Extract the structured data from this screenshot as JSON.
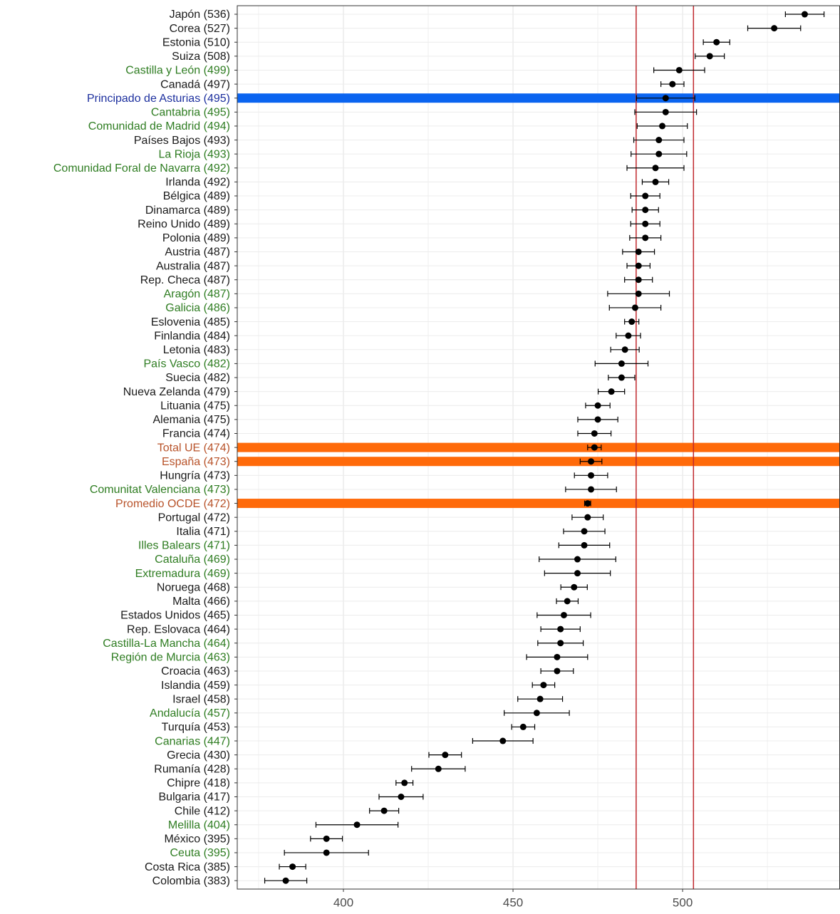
{
  "chart_data": {
    "type": "dotplot",
    "categories": [
      "Japón (536)",
      "Corea (527)",
      "Estonia (510)",
      "Suiza (508)",
      "Castilla y León (499)",
      "Canadá (497)",
      "Principado de Asturias (495)",
      "Cantabria (495)",
      "Comunidad de Madrid (494)",
      "Países Bajos (493)",
      "La Rioja (493)",
      "Comunidad Foral de Navarra (492)",
      "Irlanda (492)",
      "Bélgica (489)",
      "Dinamarca (489)",
      "Reino Unido (489)",
      "Polonia (489)",
      "Austria (487)",
      "Australia (487)",
      "Rep. Checa (487)",
      "Aragón (487)",
      "Galicia (486)",
      "Eslovenia (485)",
      "Finlandia (484)",
      "Letonia (483)",
      "País Vasco (482)",
      "Suecia (482)",
      "Nueva Zelanda (479)",
      "Lituania (475)",
      "Alemania (475)",
      "Francia (474)",
      "Total UE (474)",
      "España (473)",
      "Hungría (473)",
      "Comunitat Valenciana (473)",
      "Promedio OCDE (472)",
      "Portugal (472)",
      "Italia (471)",
      "Illes Balears (471)",
      "Cataluña (469)",
      "Extremadura (469)",
      "Noruega (468)",
      "Malta (466)",
      "Estados Unidos (465)",
      "Rep. Eslovaca (464)",
      "Castilla-La Mancha (464)",
      "Región de Murcia (463)",
      "Croacia (463)",
      "Islandia (459)",
      "Israel (458)",
      "Andalucía (457)",
      "Turquía (453)",
      "Canarias (447)",
      "Grecia (430)",
      "Rumanía (428)",
      "Chipre (418)",
      "Bulgaria (417)",
      "Chile (412)",
      "Melilla (404)",
      "México (395)",
      "Ceuta (395)",
      "Costa Rica (385)",
      "Colombia (383)"
    ],
    "values": [
      536,
      527,
      510,
      508,
      499,
      497,
      495,
      495,
      494,
      493,
      493,
      492,
      492,
      489,
      489,
      489,
      489,
      487,
      487,
      487,
      487,
      486,
      485,
      484,
      483,
      482,
      482,
      479,
      475,
      475,
      474,
      474,
      473,
      473,
      473,
      472,
      472,
      471,
      471,
      469,
      469,
      468,
      466,
      465,
      464,
      464,
      463,
      463,
      459,
      458,
      457,
      453,
      447,
      430,
      428,
      418,
      417,
      412,
      404,
      395,
      395,
      385,
      383
    ],
    "errors": [
      5.7,
      7.8,
      3.9,
      4.3,
      7.5,
      3.4,
      8.6,
      9.1,
      7.4,
      7.4,
      8.2,
      8.4,
      3.9,
      4.3,
      3.9,
      4.3,
      4.6,
      4.7,
      3.4,
      4.1,
      9.1,
      7.6,
      2.1,
      3.6,
      4.2,
      7.8,
      3.9,
      3.9,
      3.6,
      5.9,
      4.9,
      2.0,
      3.2,
      4.9,
      7.5,
      0.9,
      4.6,
      6.1,
      7.5,
      11.3,
      9.7,
      3.9,
      3.2,
      7.9,
      5.8,
      6.7,
      9.0,
      4.8,
      3.3,
      6.6,
      9.6,
      3.4,
      8.9,
      4.8,
      7.9,
      2.5,
      6.5,
      4.3,
      12.1,
      4.7,
      12.4,
      3.9,
      6.2
    ],
    "label_colors": [
      "#1a1a1a",
      "#1a1a1a",
      "#1a1a1a",
      "#1a1a1a",
      "#2f7d22",
      "#1a1a1a",
      "#1c2f9e",
      "#2f7d22",
      "#2f7d22",
      "#1a1a1a",
      "#2f7d22",
      "#2f7d22",
      "#1a1a1a",
      "#1a1a1a",
      "#1a1a1a",
      "#1a1a1a",
      "#1a1a1a",
      "#1a1a1a",
      "#1a1a1a",
      "#1a1a1a",
      "#2f7d22",
      "#2f7d22",
      "#1a1a1a",
      "#1a1a1a",
      "#1a1a1a",
      "#2f7d22",
      "#1a1a1a",
      "#1a1a1a",
      "#1a1a1a",
      "#1a1a1a",
      "#1a1a1a",
      "#b8532a",
      "#b8532a",
      "#1a1a1a",
      "#2f7d22",
      "#b8532a",
      "#1a1a1a",
      "#1a1a1a",
      "#2f7d22",
      "#2f7d22",
      "#2f7d22",
      "#1a1a1a",
      "#1a1a1a",
      "#1a1a1a",
      "#1a1a1a",
      "#2f7d22",
      "#2f7d22",
      "#1a1a1a",
      "#1a1a1a",
      "#1a1a1a",
      "#2f7d22",
      "#1a1a1a",
      "#2f7d22",
      "#1a1a1a",
      "#1a1a1a",
      "#1a1a1a",
      "#1a1a1a",
      "#1a1a1a",
      "#2f7d22",
      "#1a1a1a",
      "#2f7d22",
      "#1a1a1a",
      "#1a1a1a"
    ],
    "highlight_colors": [
      null,
      null,
      null,
      null,
      null,
      null,
      "#0a64f0",
      null,
      null,
      null,
      null,
      null,
      null,
      null,
      null,
      null,
      null,
      null,
      null,
      null,
      null,
      null,
      null,
      null,
      null,
      null,
      null,
      null,
      null,
      null,
      null,
      "#ff6a0a",
      "#ff6a0a",
      null,
      null,
      "#ff6a0a",
      null,
      null,
      null,
      null,
      null,
      null,
      null,
      null,
      null,
      null,
      null,
      null,
      null,
      null,
      null,
      null,
      null,
      null,
      null,
      null,
      null,
      null,
      null,
      null,
      null,
      null,
      null
    ],
    "color": "#000000",
    "reference_lines": [
      486.3,
      503.2
    ],
    "reference_color": "#c0282d",
    "xlim": [
      368.7,
      546.4
    ],
    "xticks": [
      400,
      450,
      500
    ],
    "x_minor_ticks": [
      375,
      425,
      475,
      525
    ],
    "grid": true
  }
}
